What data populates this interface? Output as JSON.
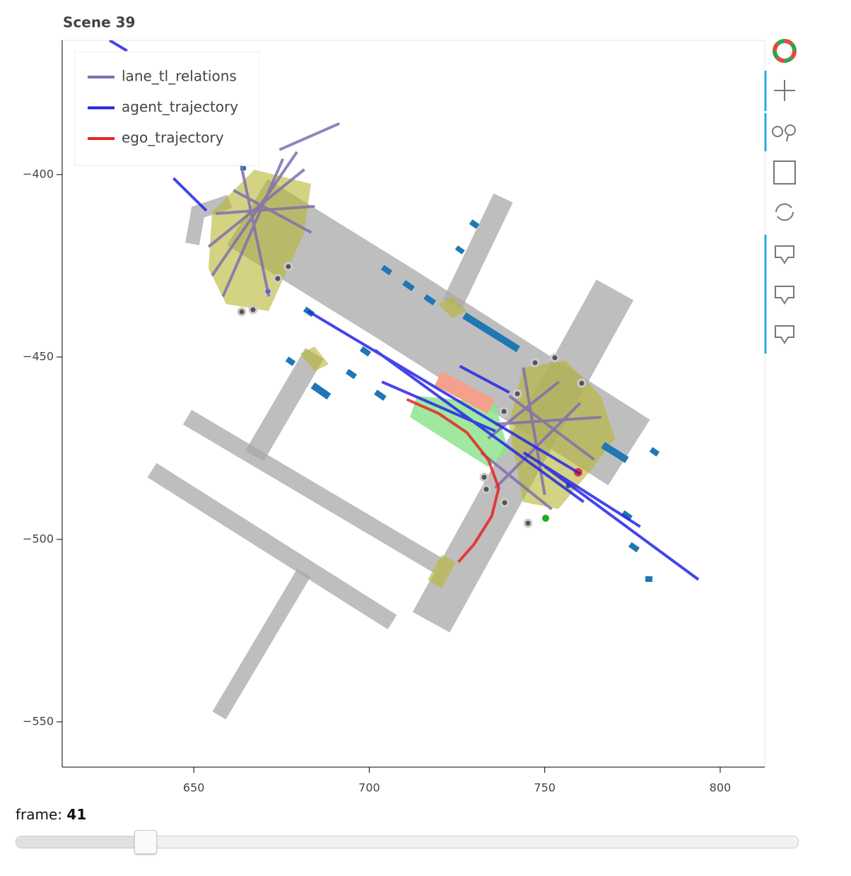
{
  "chart_data": {
    "type": "line",
    "title": "Scene 39",
    "xlim": [
      612.5,
      812.7
    ],
    "ylim": [
      -562.4,
      -363.2
    ],
    "xticks": [
      650,
      700,
      750,
      800
    ],
    "yticks": [
      {
        "value": -400,
        "label": "−400"
      },
      {
        "value": -450,
        "label": "−450"
      },
      {
        "value": -500,
        "label": "−500"
      },
      {
        "value": -550,
        "label": "−550"
      }
    ],
    "legend": "upper left",
    "series": [
      {
        "name": "lane_tl_relations",
        "color": "#7f6fae",
        "x": [
          674.4,
          691.5,
          null,
          655.2,
          679.4,
          null,
          661.3,
          683.5,
          null,
          654.2,
          681.5,
          null,
          658.3,
          675.4,
          null,
          663.3,
          671.4,
          null,
          656.2,
          684.5,
          null,
          735.9,
          766.1,
          null,
          739.9,
          764.1,
          null,
          733.9,
          754.0,
          null,
          743.9,
          750.0,
          null,
          735.9,
          760.1,
          null,
          731.9,
          752.0
        ],
        "y": [
          -393.2,
          -386.0,
          null,
          -427.7,
          -393.8,
          null,
          -404.3,
          -415.9,
          null,
          -419.8,
          -398.6,
          null,
          -433.4,
          -395.7,
          null,
          -396.5,
          -433.4,
          null,
          -410.7,
          -408.7,
          null,
          -468.4,
          -466.5,
          null,
          -460.7,
          -478.1,
          null,
          -472.3,
          -456.8,
          null,
          -452.9,
          -487.8,
          null,
          -485.9,
          -462.6,
          null,
          -476.2,
          -491.7
        ]
      },
      {
        "name": "agent_trajectory",
        "color": "#2424e6",
        "x": [
          626.0,
          631.0,
          null,
          644.2,
          653.6,
          null,
          682.5,
          760.1,
          null,
          701.6,
          761.1,
          null,
          725.8,
          739.9,
          null,
          744.0,
          777.2,
          null,
          750.0,
          793.8,
          null,
          703.6,
          735.9
        ],
        "y": [
          -363.2,
          -366.1,
          null,
          -401.0,
          -409.9,
          null,
          -437.4,
          -482.0,
          null,
          -448.1,
          -489.7,
          null,
          -452.5,
          -459.7,
          null,
          -476.2,
          -496.5,
          null,
          -480.0,
          -511.0,
          null,
          -456.8,
          -470.3
        ]
      },
      {
        "name": "ego_trajectory",
        "color": "#e82424",
        "x": [
          710.7,
          719.8,
          727.8,
          733.9,
          736.9,
          734.9,
          729.8,
          725.4
        ],
        "y": [
          -461.6,
          -465.5,
          -470.7,
          -478.1,
          -485.9,
          -493.6,
          -501.4,
          -506.2
        ]
      }
    ],
    "slider": {
      "label": "frame:",
      "value": 41
    }
  }
}
